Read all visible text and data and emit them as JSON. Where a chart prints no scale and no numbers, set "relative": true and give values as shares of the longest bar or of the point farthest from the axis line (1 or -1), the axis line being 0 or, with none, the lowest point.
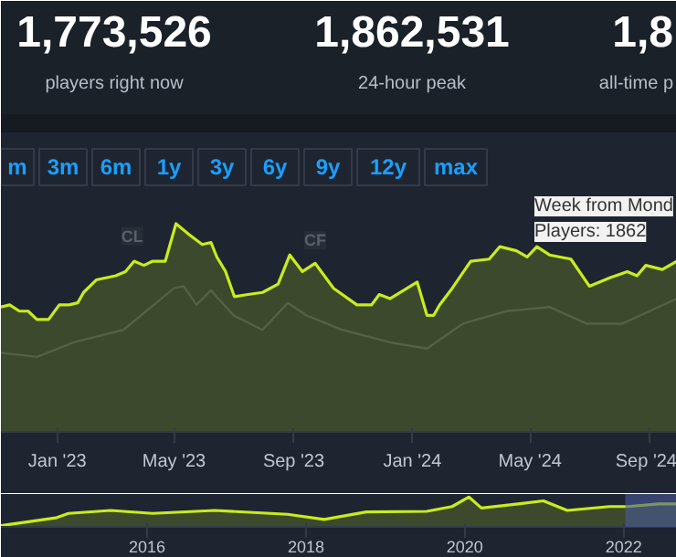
{
  "chart_data": [
    {
      "type": "line",
      "relative": true,
      "xlim": [
        "2022-11-04",
        "2024-09-29"
      ],
      "xticks": [
        {
          "value": "2023-01-01",
          "label": "Jan '23"
        },
        {
          "value": "2023-05-01",
          "label": "May '23"
        },
        {
          "value": "2023-09-01",
          "label": "Sep '23"
        },
        {
          "value": "2024-01-01",
          "label": "Jan '24"
        },
        {
          "value": "2024-05-01",
          "label": "May '24"
        },
        {
          "value": "2024-09-01",
          "label": "Sep '24"
        }
      ],
      "tick_labels": "x",
      "marker": "none",
      "line_style": "solid",
      "series": [
        {
          "type": "line",
          "color": "#3b4250",
          "x": [
            "2022-11-04",
            "2022-12-11",
            "2023-01-18",
            "2023-03-10",
            "2023-05-01",
            "2023-05-11",
            "2023-05-24",
            "2023-06-08",
            "2023-07-01",
            "2023-07-31",
            "2023-08-26",
            "2023-09-14",
            "2023-10-21",
            "2023-12-09",
            "2024-01-16",
            "2024-02-22",
            "2024-04-07",
            "2024-05-21",
            "2024-06-28",
            "2024-08-04",
            "2024-09-29"
          ],
          "values": [
            0.38,
            0.36,
            0.43,
            0.49,
            0.69,
            0.7,
            0.61,
            0.68,
            0.56,
            0.49,
            0.62,
            0.56,
            0.49,
            0.43,
            0.4,
            0.52,
            0.58,
            0.6,
            0.52,
            0.52,
            0.64
          ]
        },
        {
          "type": "area",
          "color": "#c8ec1e",
          "x": [
            "2022-11-04",
            "2022-11-13",
            "2022-11-23",
            "2022-12-02",
            "2022-12-11",
            "2022-12-23",
            "2023-01-03",
            "2023-01-13",
            "2023-01-22",
            "2023-01-28",
            "2023-02-10",
            "2023-03-02",
            "2023-03-12",
            "2023-03-21",
            "2023-03-31",
            "2023-04-09",
            "2023-04-22",
            "2023-05-03",
            "2023-05-16",
            "2023-05-30",
            "2023-06-08",
            "2023-06-14",
            "2023-06-23",
            "2023-07-02",
            "2023-07-16",
            "2023-07-31",
            "2023-08-16",
            "2023-08-28",
            "2023-09-10",
            "2023-09-23",
            "2023-10-12",
            "2023-11-05",
            "2023-11-20",
            "2023-11-28",
            "2023-12-09",
            "2024-01-06",
            "2024-01-16",
            "2024-01-23",
            "2024-01-29",
            "2024-02-11",
            "2024-03-01",
            "2024-03-20",
            "2024-03-31",
            "2024-04-17",
            "2024-04-28",
            "2024-05-08",
            "2024-05-21",
            "2024-06-12",
            "2024-07-01",
            "2024-07-22",
            "2024-08-09",
            "2024-08-19",
            "2024-08-28",
            "2024-09-14",
            "2024-09-29"
          ],
          "values": [
            0.6,
            0.61,
            0.58,
            0.58,
            0.54,
            0.54,
            0.61,
            0.61,
            0.62,
            0.67,
            0.73,
            0.75,
            0.77,
            0.82,
            0.8,
            0.82,
            0.82,
            1.0,
            0.95,
            0.9,
            0.91,
            0.84,
            0.77,
            0.65,
            0.66,
            0.67,
            0.71,
            0.85,
            0.77,
            0.81,
            0.69,
            0.61,
            0.61,
            0.66,
            0.64,
            0.72,
            0.56,
            0.56,
            0.61,
            0.69,
            0.82,
            0.83,
            0.89,
            0.87,
            0.84,
            0.89,
            0.85,
            0.83,
            0.7,
            0.74,
            0.77,
            0.75,
            0.8,
            0.78,
            0.82
          ]
        }
      ],
      "annotations": [
        "1,773,526",
        "players right now",
        "1,862,531",
        "24-hour peak",
        "1,8",
        "all-time p",
        "m",
        "3m",
        "6m",
        "1y",
        "3y",
        "6y",
        "9y",
        "12y",
        "max",
        {
          "text": "CL",
          "x": "2023-03-19",
          "y": 0.94
        },
        {
          "text": "CF",
          "x": "2023-09-23",
          "y": 0.92
        },
        "Week from Mond",
        "Players: 1862"
      ]
    },
    {
      "type": "area",
      "relative": true,
      "xlim": [
        2014.16,
        2022.67
      ],
      "xticks": [
        2016,
        2018,
        2020,
        2022
      ],
      "tick_labels": "x",
      "series": [
        {
          "color": "#c8ec1e",
          "x": [
            2014.16,
            2014.85,
            2015.01,
            2015.54,
            2016.07,
            2016.85,
            2017.77,
            2018.23,
            2018.76,
            2019.52,
            2019.84,
            2020.05,
            2020.21,
            2020.67,
            2020.99,
            2021.29,
            2021.82,
            2022.05,
            2022.44,
            2022.67
          ],
          "values": [
            0.04,
            0.3,
            0.45,
            0.55,
            0.45,
            0.55,
            0.42,
            0.25,
            0.5,
            0.52,
            0.68,
            1.0,
            0.63,
            0.77,
            0.87,
            0.55,
            0.68,
            0.68,
            0.77,
            0.77
          ]
        }
      ],
      "bands": [
        {
          "axis": "x",
          "from": 2022.02,
          "to": 2022.67,
          "color": "#4a5a9a"
        }
      ]
    }
  ]
}
